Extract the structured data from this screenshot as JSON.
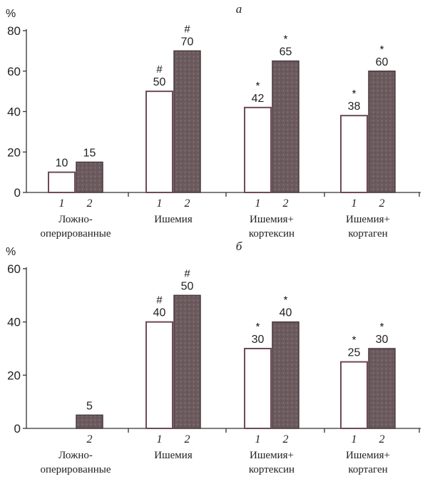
{
  "chart_data": [
    {
      "type": "bar",
      "title": "а",
      "ylabel": "%",
      "ylim": [
        0,
        80
      ],
      "yticks": [
        0,
        20,
        40,
        60,
        80
      ],
      "groups": [
        {
          "label_lines": [
            "Ложно-",
            "оперированные"
          ],
          "bars": [
            {
              "num": "1",
              "value": 10,
              "label": "10",
              "mark": ""
            },
            {
              "num": "2",
              "value": 15,
              "label": "15",
              "mark": ""
            }
          ]
        },
        {
          "label_lines": [
            "Ишемия"
          ],
          "bars": [
            {
              "num": "1",
              "value": 50,
              "label": "50",
              "mark": "#"
            },
            {
              "num": "2",
              "value": 70,
              "label": "70",
              "mark": "#"
            }
          ]
        },
        {
          "label_lines": [
            "Ишемия+",
            "кортексин"
          ],
          "bars": [
            {
              "num": "1",
              "value": 42,
              "label": "42",
              "mark": "*"
            },
            {
              "num": "2",
              "value": 65,
              "label": "65",
              "mark": "*"
            }
          ]
        },
        {
          "label_lines": [
            "Ишемия+",
            "кортаген"
          ],
          "bars": [
            {
              "num": "1",
              "value": 38,
              "label": "38",
              "mark": "*"
            },
            {
              "num": "2",
              "value": 60,
              "label": "60",
              "mark": "*"
            }
          ]
        }
      ]
    },
    {
      "type": "bar",
      "title": "б",
      "ylabel": "%",
      "ylim": [
        0,
        60
      ],
      "yticks": [
        0,
        20,
        40,
        60
      ],
      "groups": [
        {
          "label_lines": [
            "Ложно-",
            "оперированные"
          ],
          "bars": [
            {
              "num": "",
              "value": 0,
              "label": "",
              "mark": ""
            },
            {
              "num": "2",
              "value": 5,
              "label": "5",
              "mark": ""
            }
          ]
        },
        {
          "label_lines": [
            "Ишемия"
          ],
          "bars": [
            {
              "num": "1",
              "value": 40,
              "label": "40",
              "mark": "#"
            },
            {
              "num": "2",
              "value": 50,
              "label": "50",
              "mark": "#"
            }
          ]
        },
        {
          "label_lines": [
            "Ишемия+",
            "кортексин"
          ],
          "bars": [
            {
              "num": "1",
              "value": 30,
              "label": "30",
              "mark": "*"
            },
            {
              "num": "2",
              "value": 40,
              "label": "40",
              "mark": "*"
            }
          ]
        },
        {
          "label_lines": [
            "Ишемия+",
            "кортаген"
          ],
          "bars": [
            {
              "num": "1",
              "value": 25,
              "label": "25",
              "mark": "*"
            },
            {
              "num": "2",
              "value": 30,
              "label": "30",
              "mark": "*"
            }
          ]
        }
      ]
    }
  ]
}
